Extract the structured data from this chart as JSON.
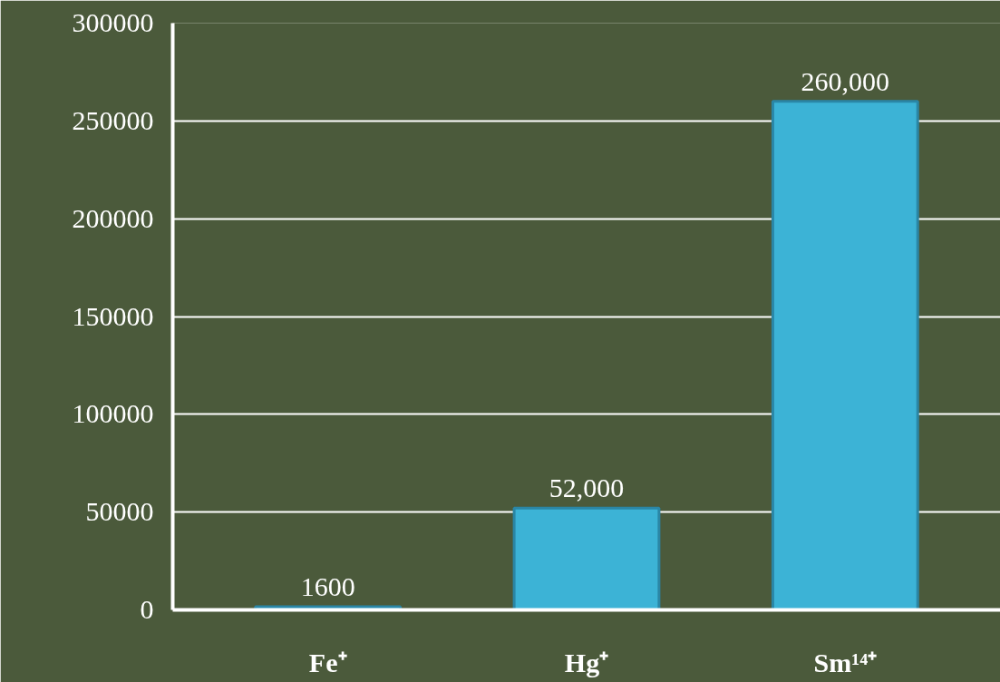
{
  "chart_data": {
    "type": "bar",
    "categories": [
      "Fe⁺",
      "Hg⁺",
      "Sm¹⁴⁺"
    ],
    "values": [
      1600,
      52000,
      260000
    ],
    "value_labels": [
      "1600",
      "52,000",
      "260,000"
    ],
    "color": "#3cb3d6",
    "ylim": [
      0,
      300000
    ],
    "yticks": [
      0,
      50000,
      100000,
      150000,
      200000,
      250000,
      300000
    ],
    "grid": "y"
  }
}
